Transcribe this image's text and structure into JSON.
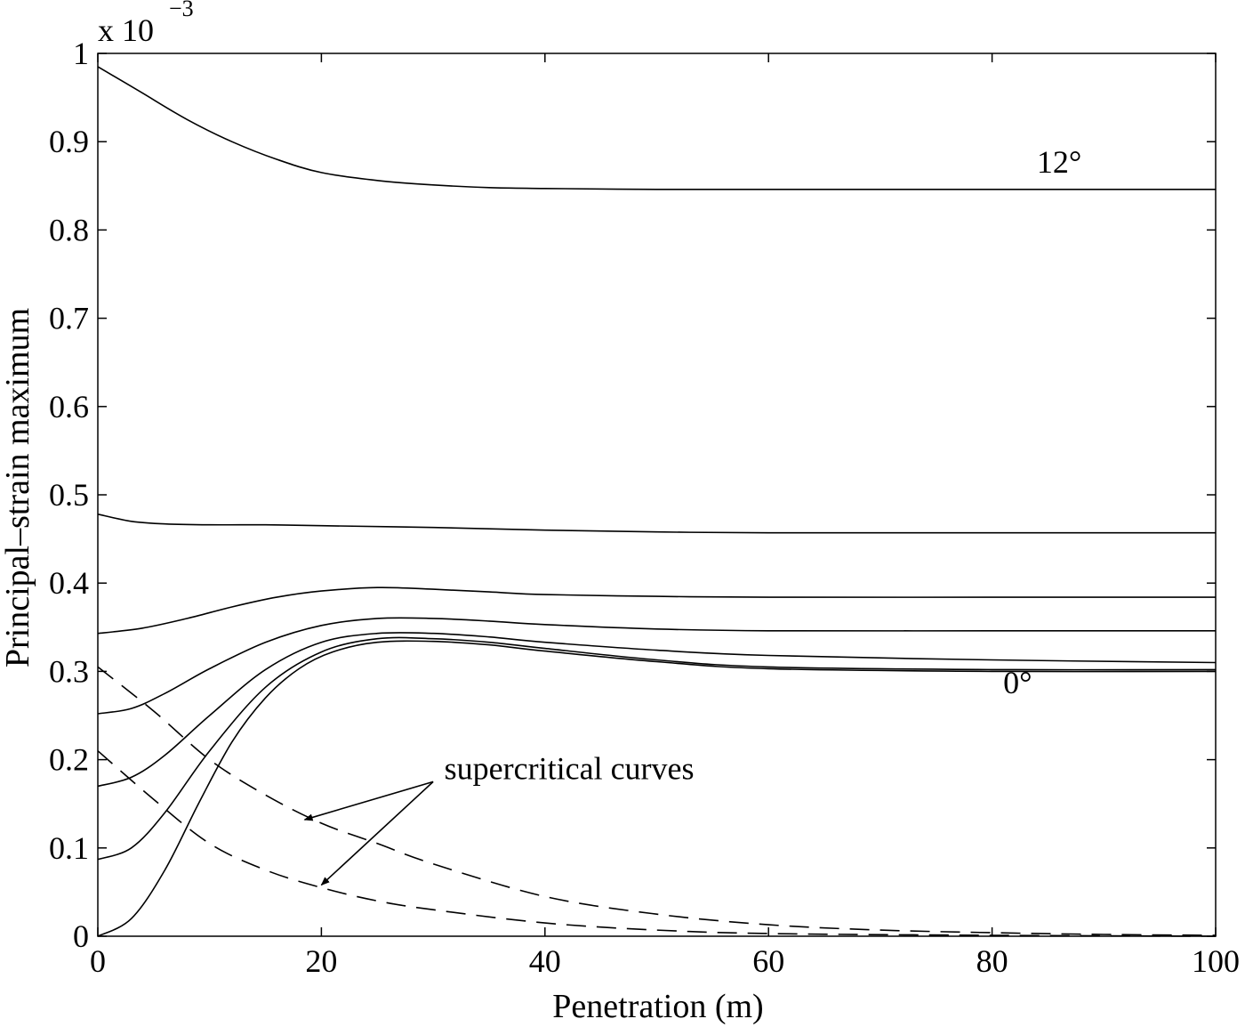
{
  "chart_data": {
    "type": "line",
    "title": "",
    "xlabel": "Penetration (m)",
    "ylabel": "Principal–strain maximum",
    "y_multiplier": "x 10",
    "y_multiplier_exp": "−3",
    "xlim": [
      0,
      100
    ],
    "ylim": [
      0,
      1
    ],
    "x_scale": "linear",
    "y_scale": "linear",
    "grid": false,
    "x_ticks": [
      "0",
      "20",
      "40",
      "60",
      "80",
      "100"
    ],
    "y_ticks": [
      "0",
      "0.1",
      "0.2",
      "0.3",
      "0.4",
      "0.5",
      "0.6",
      "0.7",
      "0.8",
      "0.9",
      "1"
    ],
    "series": [
      {
        "style": "solid",
        "x": [
          0,
          4,
          8,
          12,
          16,
          20,
          25,
          30,
          35,
          40,
          50,
          60,
          80,
          100
        ],
        "y": [
          0.985,
          0.955,
          0.925,
          0.9,
          0.88,
          0.865,
          0.856,
          0.851,
          0.848,
          0.847,
          0.846,
          0.846,
          0.846,
          0.846
        ]
      },
      {
        "style": "solid",
        "x": [
          0,
          3,
          6,
          10,
          15,
          20,
          30,
          40,
          50,
          60,
          80,
          100
        ],
        "y": [
          0.478,
          0.47,
          0.467,
          0.466,
          0.466,
          0.465,
          0.463,
          0.46,
          0.458,
          0.457,
          0.457,
          0.457
        ]
      },
      {
        "style": "solid",
        "x": [
          0,
          4,
          8,
          12,
          16,
          20,
          25,
          30,
          35,
          40,
          50,
          60,
          80,
          100
        ],
        "y": [
          0.343,
          0.349,
          0.36,
          0.373,
          0.384,
          0.391,
          0.395,
          0.393,
          0.39,
          0.387,
          0.385,
          0.384,
          0.384,
          0.384
        ]
      },
      {
        "style": "solid",
        "x": [
          0,
          3,
          6,
          10,
          15,
          20,
          25,
          30,
          35,
          40,
          50,
          60,
          80,
          100
        ],
        "y": [
          0.252,
          0.258,
          0.275,
          0.303,
          0.333,
          0.352,
          0.36,
          0.36,
          0.357,
          0.353,
          0.348,
          0.346,
          0.346,
          0.346
        ]
      },
      {
        "style": "solid",
        "x": [
          0,
          3,
          6,
          10,
          15,
          20,
          25,
          30,
          35,
          40,
          50,
          60,
          80,
          100
        ],
        "y": [
          0.17,
          0.18,
          0.205,
          0.25,
          0.302,
          0.333,
          0.343,
          0.343,
          0.339,
          0.333,
          0.324,
          0.318,
          0.313,
          0.31
        ]
      },
      {
        "style": "solid",
        "x": [
          0,
          3,
          6,
          10,
          15,
          20,
          25,
          30,
          35,
          40,
          50,
          60,
          80,
          100
        ],
        "y": [
          0.087,
          0.1,
          0.14,
          0.21,
          0.282,
          0.322,
          0.337,
          0.337,
          0.333,
          0.326,
          0.313,
          0.305,
          0.302,
          0.302
        ]
      },
      {
        "style": "solid",
        "x": [
          0,
          3,
          6,
          9,
          12,
          15,
          18,
          21,
          25,
          30,
          35,
          40,
          50,
          60,
          80,
          100
        ],
        "y": [
          0.0,
          0.02,
          0.075,
          0.15,
          0.22,
          0.27,
          0.303,
          0.322,
          0.333,
          0.334,
          0.33,
          0.323,
          0.311,
          0.303,
          0.3,
          0.3
        ]
      },
      {
        "style": "dashed",
        "x": [
          0,
          5,
          10,
          15,
          20,
          25,
          30,
          40,
          50,
          60,
          70,
          80,
          90,
          100
        ],
        "y": [
          0.305,
          0.255,
          0.2,
          0.16,
          0.128,
          0.105,
          0.082,
          0.045,
          0.025,
          0.013,
          0.007,
          0.004,
          0.002,
          0.001
        ]
      },
      {
        "style": "dashed",
        "x": [
          0,
          5,
          10,
          15,
          20,
          25,
          30,
          40,
          50,
          60,
          80,
          100
        ],
        "y": [
          0.21,
          0.155,
          0.105,
          0.075,
          0.055,
          0.04,
          0.03,
          0.015,
          0.007,
          0.003,
          0.001,
          0.0
        ]
      }
    ],
    "annotations": [
      {
        "text": "12°",
        "x": 84,
        "y": 0.865
      },
      {
        "text": "0°",
        "x": 81,
        "y": 0.275
      },
      {
        "text": "supercritical curves",
        "x": 31,
        "y": 0.178
      }
    ],
    "arrows": [
      {
        "from": [
          30,
          0.175
        ],
        "to": [
          18.5,
          0.132
        ]
      },
      {
        "from": [
          30,
          0.175
        ],
        "to": [
          20,
          0.058
        ]
      }
    ]
  }
}
